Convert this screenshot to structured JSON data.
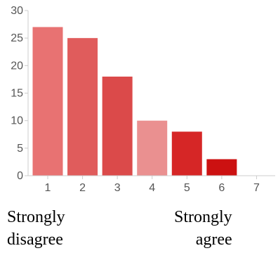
{
  "chart_data": {
    "type": "bar",
    "title": "",
    "xlabel": "",
    "ylabel": "",
    "categories": [
      "1",
      "2",
      "3",
      "4",
      "5",
      "6",
      "7"
    ],
    "values": [
      27,
      25,
      18,
      10,
      8,
      3,
      0
    ],
    "ylim": [
      0,
      30
    ],
    "yticks": [
      0,
      5,
      10,
      15,
      20,
      25,
      30
    ],
    "grid": false,
    "legend": "none",
    "bar_colors": [
      "#e87272",
      "#e05c5c",
      "#db4a4a",
      "#ea9090",
      "#d62626",
      "#cc1111",
      "#cc1111"
    ],
    "axis_color": "#cccccc",
    "tick_text_color": "#555555"
  },
  "scale_labels": {
    "left": [
      "Strongly",
      "disagree"
    ],
    "right": [
      "Strongly",
      "agree"
    ]
  }
}
